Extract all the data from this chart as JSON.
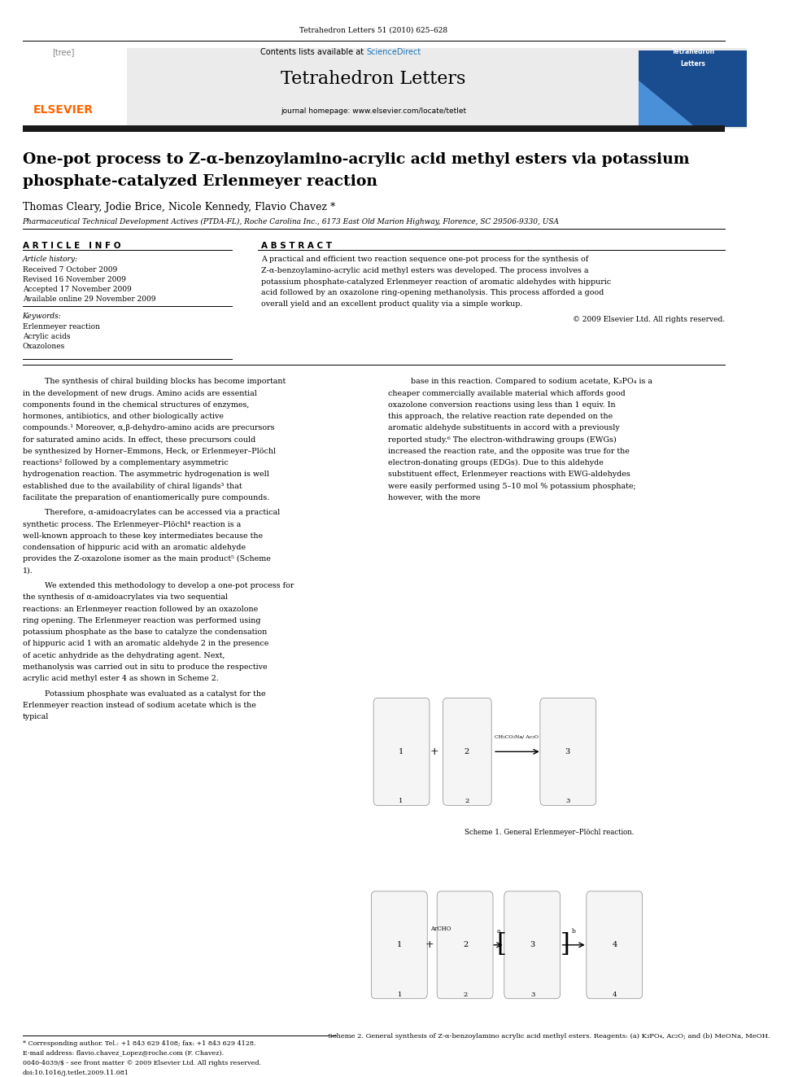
{
  "page_width": 9.92,
  "page_height": 13.23,
  "background_color": "#ffffff",
  "journal_line": "Tetrahedron Letters 51 (2010) 625–628",
  "header_bg": "#e8e8e8",
  "contents_line": "Contents lists available at",
  "sciencedirect_text": "ScienceDirect",
  "sciencedirect_color": "#1a73b8",
  "journal_title": "Tetrahedron Letters",
  "journal_homepage": "journal homepage: www.elsevier.com/locate/tetlet",
  "elsevier_color": "#ff6600",
  "thick_bar_color": "#1a1a1a",
  "article_title_line1": "One-pot process to Z-α-benzoylamino-acrylic acid methyl esters via potassium",
  "article_title_line2": "phosphate-catalyzed Erlenmeyer reaction",
  "authors": "Thomas Cleary, Jodie Brice, Nicole Kennedy, Flavio Chavez *",
  "affiliation": "Pharmaceutical Technical Development Actives (PTDA-FL), Roche Carolina Inc., 6173 East Old Marion Highway, Florence, SC 29506-9330, USA",
  "article_info_header": "A R T I C L E   I N F O",
  "abstract_header": "A B S T R A C T",
  "article_history_label": "Article history:",
  "received": "Received 7 October 2009",
  "revised": "Revised 16 November 2009",
  "accepted": "Accepted 17 November 2009",
  "available": "Available online 29 November 2009",
  "keywords_label": "Keywords:",
  "keyword1": "Erlenmeyer reaction",
  "keyword2": "Acrylic acids",
  "keyword3": "Oxazolones",
  "abstract_text": "A practical and efficient two reaction sequence one-pot process for the synthesis of Z-α-benzoylamino-acrylic acid methyl esters was developed. The process involves a potassium phosphate-catalyzed Erlenmeyer reaction of aromatic aldehydes with hippuric acid followed by an oxazolone ring-opening methanolysis. This process afforded a good overall yield and an excellent product quality via a simple workup.",
  "copyright": "© 2009 Elsevier Ltd. All rights reserved.",
  "body_col1_para1": "The synthesis of chiral building blocks has become important in the development of new drugs. Amino acids are essential components found in the chemical structures of enzymes, hormones, antibiotics, and other biologically active compounds.¹ Moreover, α,β-dehydro-amino acids are precursors for saturated amino acids. In effect, these precursors could be synthesized by Horner–Emmons, Heck, or Erlenmeyer–Plöchl reactions² followed by a complementary asymmetric hydrogenation reaction. The asymmetric hydrogenation is well established due to the availability of chiral ligands³ that facilitate the preparation of enantiomerically pure compounds.",
  "body_col1_para2": "Therefore, α-amidoacrylates can be accessed via a practical synthetic process. The Erlenmeyer–Plöchl⁴ reaction is a well-known approach to these key intermediates because the condensation of hippuric acid with an aromatic aldehyde provides the Z-oxazolone isomer as the main product⁵ (Scheme 1).",
  "body_col1_para3": "We extended this methodology to develop a one-pot process for the synthesis of α-amidoacrylates via two sequential reactions: an Erlenmeyer reaction followed by an oxazolone ring opening. The Erlenmeyer reaction was performed using potassium phosphate as the base to catalyze the condensation of hippuric acid 1 with an aromatic aldehyde 2 in the presence of acetic anhydride as the dehydrating agent. Next, methanolysis was carried out in situ to produce the respective acrylic acid methyl ester 4 as shown in Scheme 2.",
  "body_col1_para4": "Potassium phosphate was evaluated as a catalyst for the Erlenmeyer reaction instead of sodium acetate which is the typical",
  "body_col2_para1": "base in this reaction. Compared to sodium acetate, K₃PO₄ is a cheaper commercially available material which affords good oxazolone conversion reactions using less than 1 equiv. In this approach, the relative reaction rate depended on the aromatic aldehyde substituents in accord with a previously reported study.⁶ The electron-withdrawing groups (EWGs) increased the reaction rate, and the opposite was true for the electron-donating groups (EDGs). Due to this aldehyde substituent effect, Erlenmeyer reactions with EWG-aldehydes were easily performed using 5–10 mol % potassium phosphate; however, with the more",
  "scheme1_caption": "Scheme 1. General Erlenmeyer–Plöchl reaction.",
  "scheme2_caption": "Scheme 2. General synthesis of Z-α-benzoylamino acrylic acid methyl esters. Reagents: (a) K₃PO₄, Ac₂O; and (b) MeONa, MeOH.",
  "footnote_star": "* Corresponding author. Tel.: +1 843 629 4108; fax: +1 843 629 4128.",
  "footnote_email": "E-mail address: flavio.chavez_Lopez@roche.com (F. Chavez).",
  "footnote_issn": "0040-4039/$ - see front matter © 2009 Elsevier Ltd. All rights reserved.",
  "footnote_doi": "doi:10.1016/j.tetlet.2009.11.081"
}
